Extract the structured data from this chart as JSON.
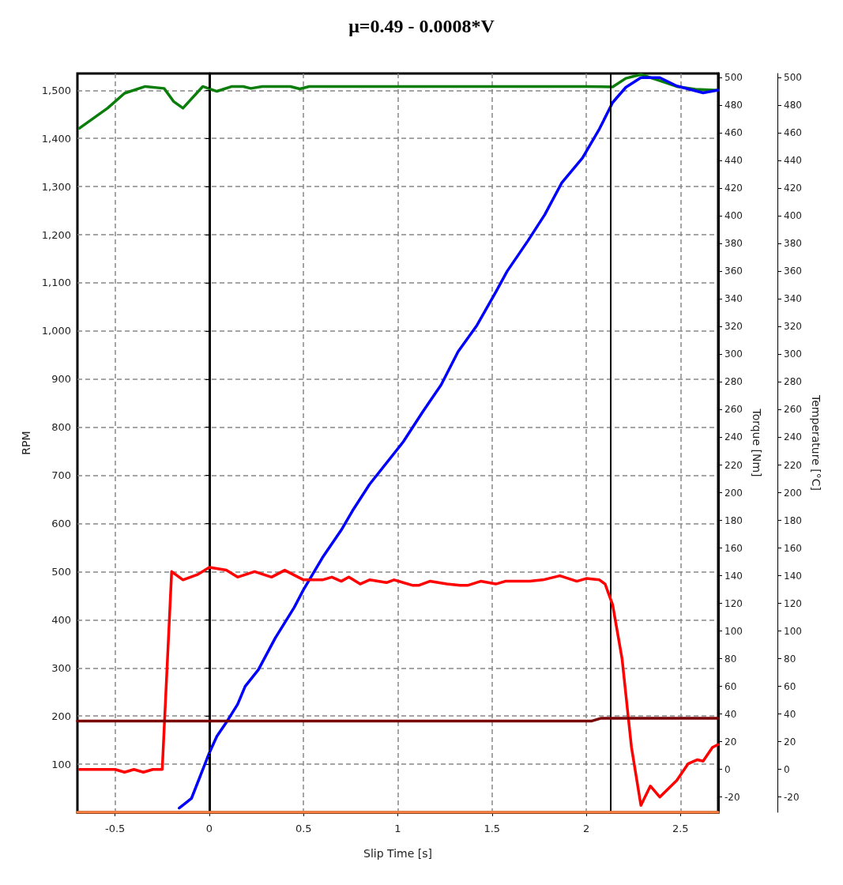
{
  "chart_data": {
    "type": "line",
    "title": "μ=0.49 - 0.0008*V",
    "xlabel": "Slip Time [s]",
    "ylabel": "RPM",
    "y2label": "Torque [Nm]",
    "y3label": "Temperature [°C]",
    "xlim": [
      -0.7,
      2.7
    ],
    "xticks": [
      -0.5,
      0,
      0.5,
      1,
      1.5,
      2,
      2.5
    ],
    "ylim": [
      0,
      1535
    ],
    "yticks": [
      100,
      200,
      300,
      400,
      500,
      600,
      700,
      800,
      900,
      {
        "value": 1000,
        "label": "1,000"
      },
      {
        "value": 1100,
        "label": "1,100"
      },
      {
        "value": 1200,
        "label": "1,200"
      },
      {
        "value": 1300,
        "label": "1,300"
      },
      {
        "value": 1400,
        "label": "1,400"
      },
      {
        "value": 1500,
        "label": "1,500"
      }
    ],
    "y2lim": [
      -31,
      503
    ],
    "y2ticks": [
      -20,
      0,
      20,
      40,
      60,
      80,
      100,
      120,
      140,
      160,
      180,
      200,
      220,
      240,
      260,
      280,
      300,
      320,
      340,
      360,
      380,
      400,
      420,
      440,
      460,
      480,
      500
    ],
    "y3lim": [
      -31,
      503
    ],
    "y3ticks": [
      -20,
      0,
      20,
      40,
      60,
      80,
      100,
      120,
      140,
      160,
      180,
      200,
      220,
      240,
      260,
      280,
      300,
      320,
      340,
      360,
      380,
      400,
      420,
      440,
      460,
      480,
      500
    ],
    "grid": true,
    "marker": "none",
    "line_style": "solid",
    "ref_lines": [
      {
        "axis": "x",
        "value": 0,
        "color": "#000000",
        "line_style": "dotted"
      },
      {
        "axis": "x",
        "value": 2.13,
        "color": "#000000",
        "line_style": "solid"
      }
    ],
    "series": [
      {
        "color": "#0a7d0a",
        "axis": "y",
        "x": [
          -0.69,
          -0.54,
          -0.45,
          -0.34,
          -0.24,
          -0.19,
          -0.14,
          -0.035,
          0.04,
          0.12,
          0.18,
          0.22,
          0.28,
          0.43,
          0.48,
          0.53,
          1.0,
          1.5,
          2.0,
          2.14,
          2.21,
          2.29,
          2.39,
          2.48,
          2.58,
          2.7
        ],
        "values": [
          1421,
          1463,
          1494,
          1508,
          1504,
          1477,
          1463,
          1508,
          1498,
          1508,
          1508,
          1504,
          1508,
          1508,
          1503,
          1508,
          1508,
          1508,
          1508,
          1507,
          1525,
          1533,
          1520,
          1508,
          1502,
          1500
        ]
      },
      {
        "color": "#0000ff",
        "axis": "y3",
        "x": [
          -0.16,
          -0.095,
          0,
          0.04,
          0.095,
          0.15,
          0.19,
          0.26,
          0.35,
          0.45,
          0.5,
          0.6,
          0.7,
          0.76,
          0.85,
          1.03,
          1.13,
          1.23,
          1.32,
          1.42,
          1.52,
          1.58,
          1.69,
          1.78,
          1.87,
          1.98,
          2.07,
          2.14,
          2.21,
          2.29,
          2.39,
          2.48,
          2.62,
          2.7
        ],
        "values": [
          -28,
          -21,
          12,
          24,
          35,
          47,
          60,
          72,
          95,
          117,
          130,
          153,
          173,
          187,
          206,
          237,
          258,
          278,
          302,
          321,
          345,
          360,
          382,
          401,
          424,
          442,
          463,
          482,
          493,
          500,
          500,
          494,
          489,
          491
        ]
      },
      {
        "color": "#ff0000",
        "axis": "y2",
        "x": [
          -0.69,
          -0.5,
          -0.45,
          -0.4,
          -0.35,
          -0.3,
          -0.25,
          -0.2,
          -0.14,
          -0.06,
          0,
          0.09,
          0.15,
          0.24,
          0.33,
          0.4,
          0.5,
          0.6,
          0.65,
          0.7,
          0.74,
          0.8,
          0.85,
          0.94,
          0.98,
          1.08,
          1.11,
          1.17,
          1.26,
          1.33,
          1.37,
          1.44,
          1.52,
          1.57,
          1.7,
          1.77,
          1.86,
          1.95,
          2.0,
          2.07,
          2.1,
          2.14,
          2.19,
          2.24,
          2.29,
          2.34,
          2.39,
          2.48,
          2.54,
          2.59,
          2.62,
          2.67,
          2.7
        ],
        "values": [
          0,
          0,
          -2,
          0,
          -2,
          0,
          0,
          143,
          137,
          141,
          146,
          144,
          139,
          143,
          139,
          144,
          137,
          137,
          139,
          136,
          139,
          134,
          137,
          135,
          137,
          133,
          133,
          136,
          134,
          133,
          133,
          136,
          134,
          136,
          136,
          137,
          140,
          136,
          138,
          137,
          134,
          119,
          80,
          16,
          -26,
          -12,
          -20,
          -8,
          4,
          7,
          6,
          16,
          18
        ]
      },
      {
        "color": "#7a0000",
        "axis": "y3",
        "x": [
          -0.7,
          2.03,
          2.08,
          2.7
        ],
        "values": [
          35,
          35,
          37,
          37
        ]
      },
      {
        "color": "#ff8040",
        "axis": "y",
        "x": [
          -0.7,
          2.7
        ],
        "values": [
          0,
          0
        ]
      }
    ]
  }
}
